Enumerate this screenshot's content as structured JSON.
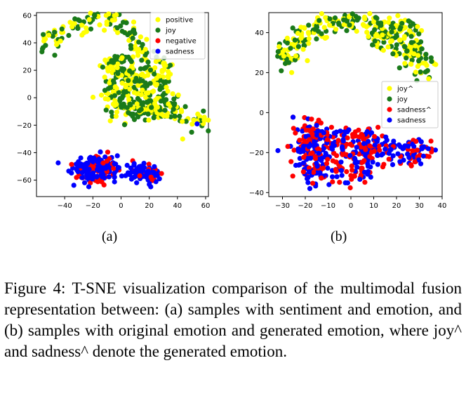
{
  "panel_a": {
    "label": "(a)"
  },
  "panel_b": {
    "label": "(b)"
  },
  "caption": "Figure 4: T-SNE visualization comparison of the multimodal fusion representation between: (a) samples with sentiment and emotion, and (b) samples with original emotion and generated emotion, where joy^ and sadness^ denote the generated emotion.",
  "chart_data": [
    {
      "type": "scatter",
      "xlim": [
        -60,
        62
      ],
      "ylim": [
        -72,
        62
      ],
      "xticks": [
        -40,
        -20,
        0,
        20,
        40,
        60
      ],
      "yticks": [
        -60,
        -40,
        -20,
        0,
        20,
        40,
        60
      ],
      "grid": false,
      "legend_position": "top-right",
      "series": [
        {
          "name": "positive",
          "color": "#ffff00"
        },
        {
          "name": "joy",
          "color": "#1a7a1a"
        },
        {
          "name": "negative",
          "color": "#ff0000"
        },
        {
          "name": "sadness",
          "color": "#0000ff"
        }
      ]
    },
    {
      "type": "scatter",
      "xlim": [
        -36,
        40
      ],
      "ylim": [
        -42,
        50
      ],
      "xticks": [
        -30,
        -20,
        -10,
        0,
        10,
        20,
        30,
        40
      ],
      "yticks": [
        -40,
        -20,
        0,
        20,
        40
      ],
      "grid": false,
      "legend_position": "right",
      "series": [
        {
          "name": "joy^",
          "color": "#ffff00"
        },
        {
          "name": "joy",
          "color": "#1a7a1a"
        },
        {
          "name": "sadness^",
          "color": "#ff0000"
        },
        {
          "name": "sadness",
          "color": "#0000ff"
        }
      ]
    }
  ]
}
